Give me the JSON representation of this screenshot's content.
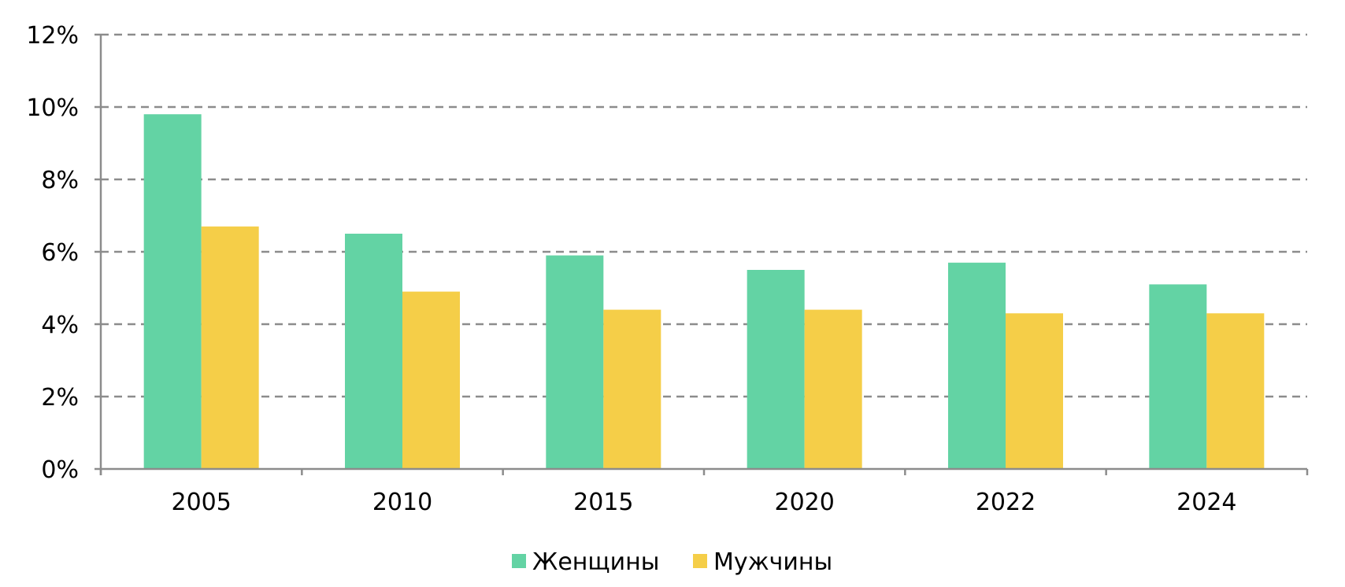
{
  "chart_data": {
    "type": "bar",
    "categories": [
      "2005",
      "2010",
      "2015",
      "2020",
      "2022",
      "2024"
    ],
    "series": [
      {
        "name": "Женщины",
        "values": [
          9.8,
          6.5,
          5.9,
          5.5,
          5.7,
          5.1
        ],
        "color": "#63d3a4"
      },
      {
        "name": "Мужчины",
        "values": [
          6.7,
          4.9,
          4.4,
          4.4,
          4.3,
          4.3
        ],
        "color": "#f5ce48"
      }
    ],
    "ylim": [
      0,
      12
    ],
    "yticks": [
      0,
      2,
      4,
      6,
      8,
      10,
      12
    ],
    "ytick_format": "%",
    "grid": true,
    "grid_style": "dashed",
    "legend": "bottom-center",
    "axis_color": "#8c8c8c",
    "grid_color": "#8c8c8c"
  }
}
